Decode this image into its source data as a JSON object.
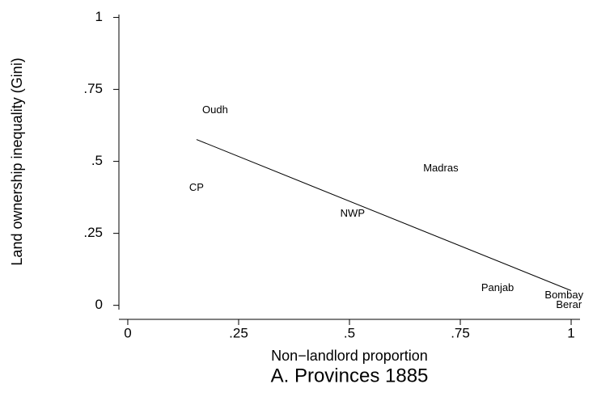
{
  "chart_data": {
    "type": "scatter",
    "title": "A. Provinces 1885",
    "xlabel": "Non−landlord proportion",
    "ylabel": "Land ownership inequality (Gini)",
    "labels": [
      "Oudh",
      "CP",
      "Madras",
      "NWP",
      "Panjab",
      "Bombay",
      "Berar"
    ],
    "x": [
      0.197,
      0.155,
      0.706,
      0.507,
      0.834,
      0.984,
      0.995
    ],
    "values": [
      0.677,
      0.407,
      0.475,
      0.317,
      0.059,
      0.034,
      0
    ],
    "fit": {
      "x": [
        0.155,
        1
      ],
      "values": [
        0.576,
        0.051
      ]
    },
    "color": "#000000",
    "xlim": [
      -0.02,
      1.02
    ],
    "ylim": [
      -0.015,
      1.01
    ],
    "xticks": [
      0,
      {
        "value": 0.25,
        "label": ".25"
      },
      {
        "value": 0.5,
        "label": ".5"
      },
      {
        "value": 0.75,
        "label": ".75"
      },
      1
    ],
    "yticks": [
      0,
      {
        "value": 0.25,
        "label": ".25"
      },
      {
        "value": 0.5,
        "label": ".5"
      },
      {
        "value": 0.75,
        "label": ".75"
      },
      1
    ]
  }
}
